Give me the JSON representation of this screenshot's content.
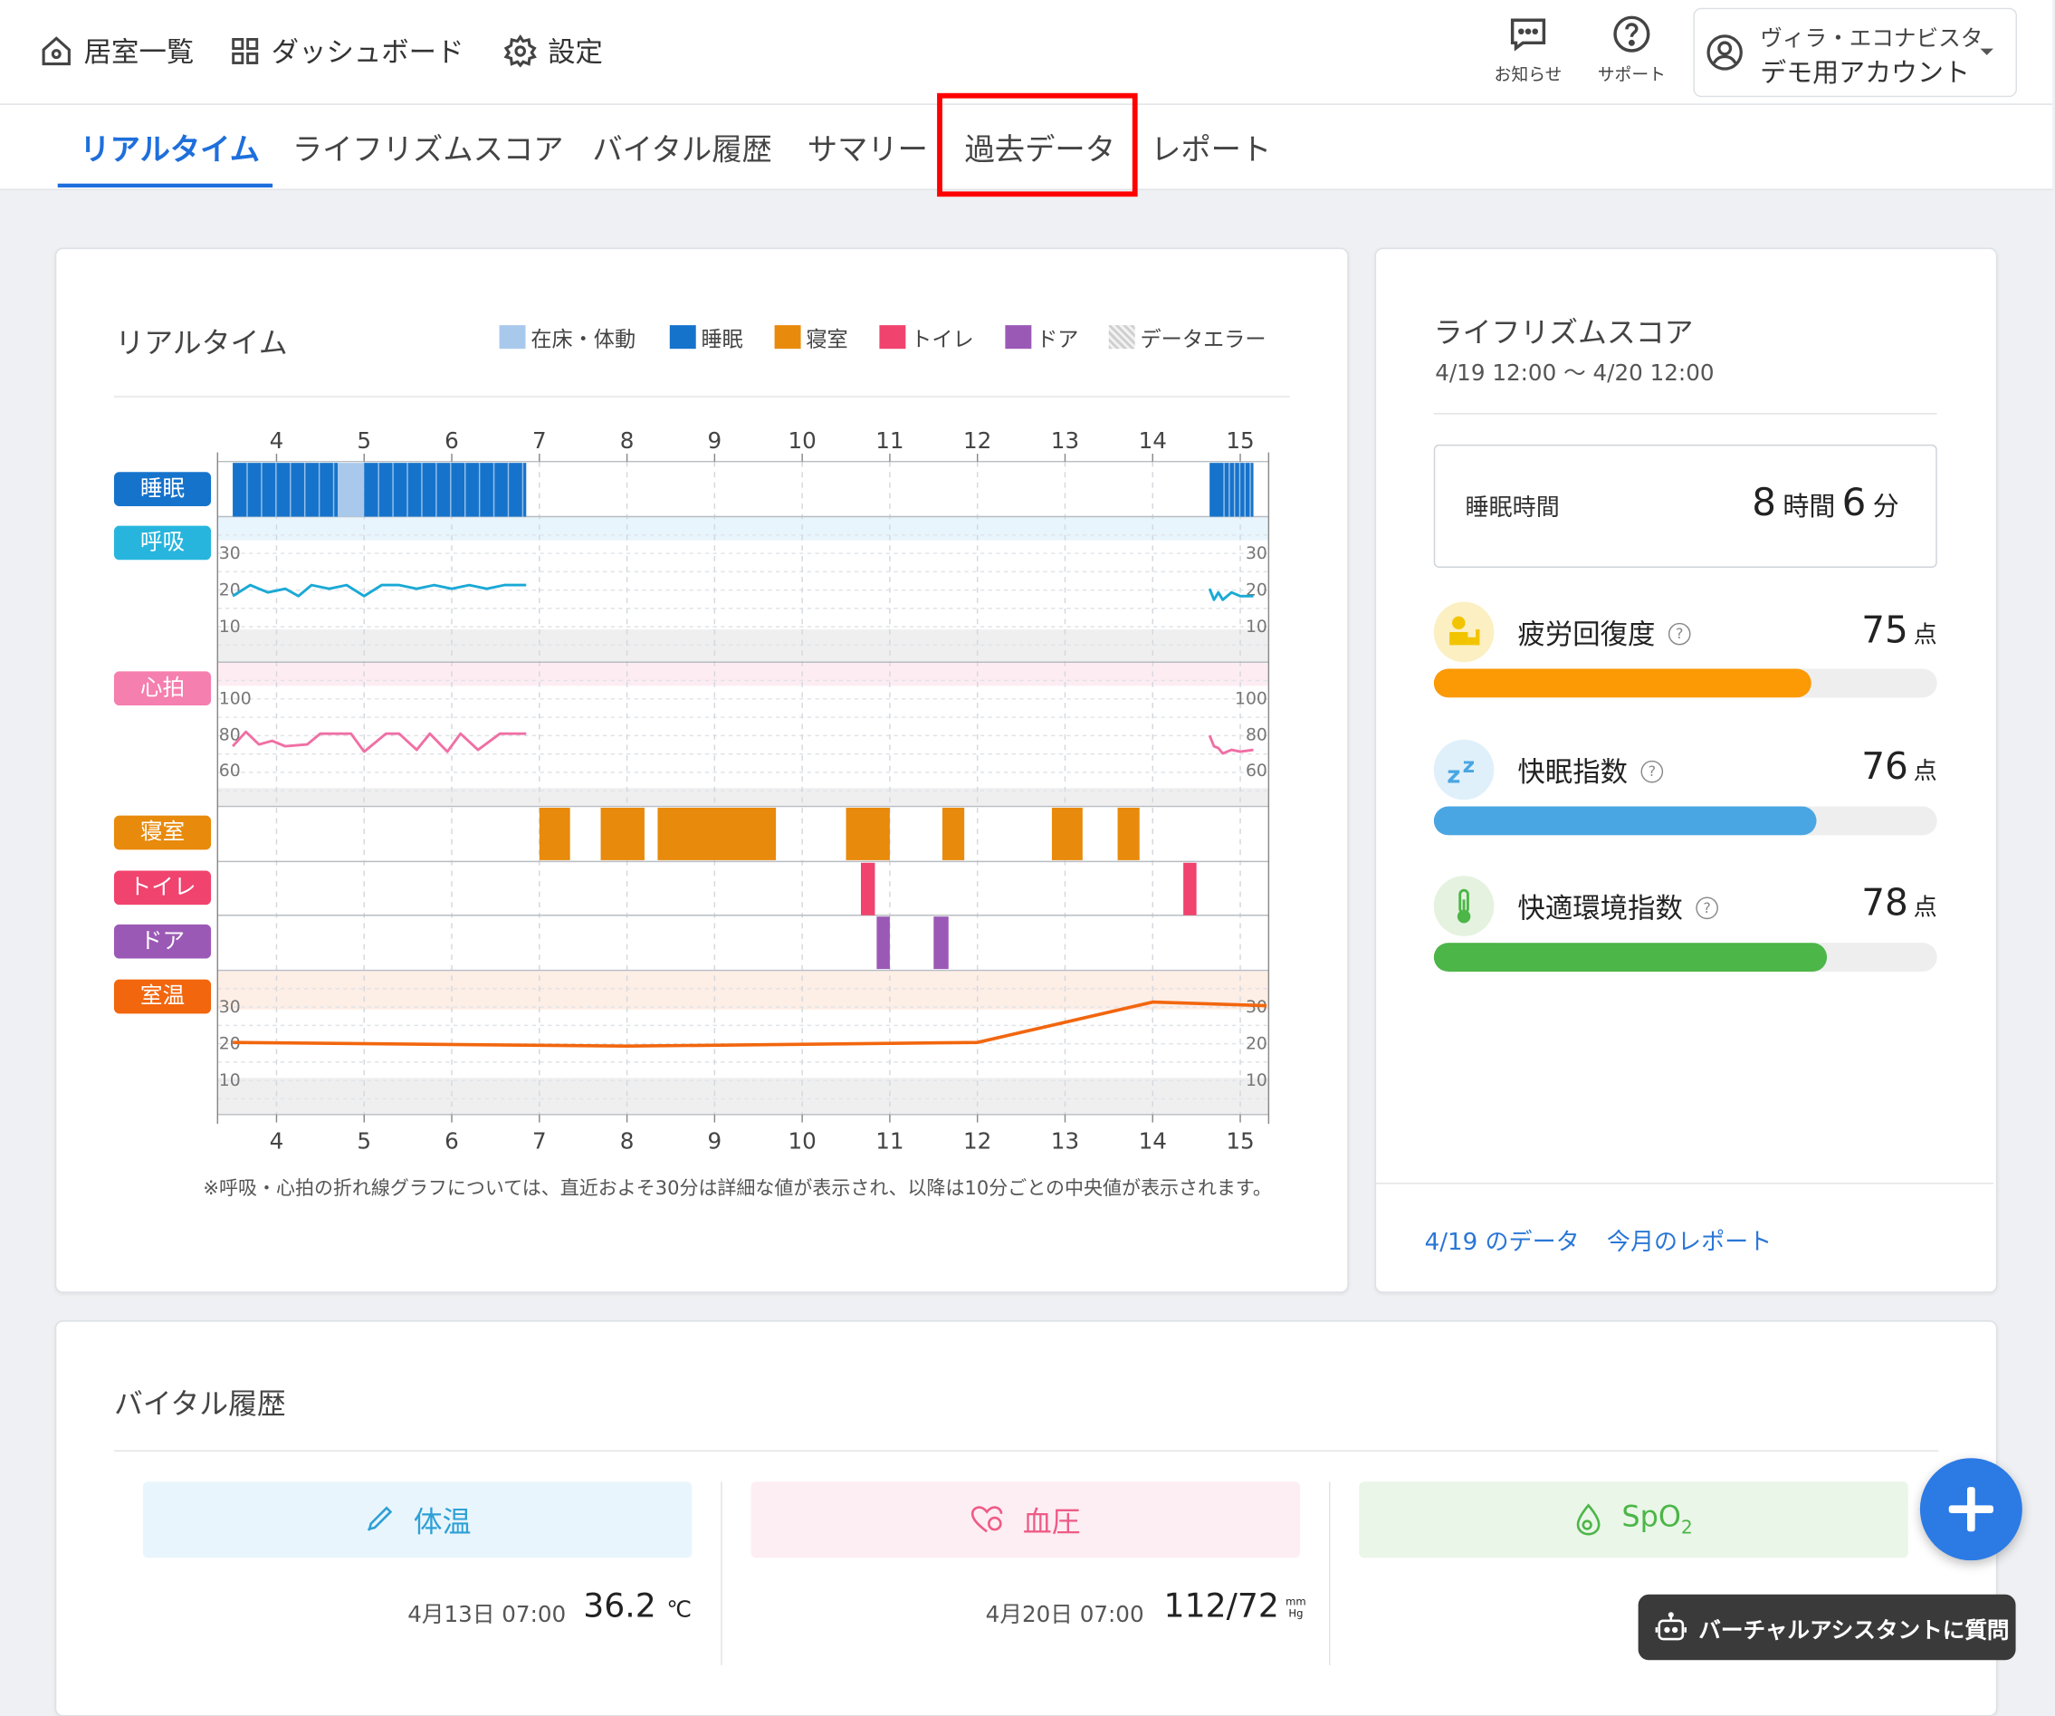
{
  "nav": {
    "rooms": "居室一覧",
    "dashboard": "ダッシュボード",
    "settings": "設定",
    "notifications": "お知らせ",
    "support": "サポート",
    "account_line1": "ヴィラ・エコナビスタ",
    "account_line2": "デモ用アカウント"
  },
  "tabs": [
    "リアルタイム",
    "ライフリズムスコア",
    "バイタル履歴",
    "サマリー",
    "過去データ",
    "レポート"
  ],
  "realtime": {
    "title": "リアルタイム",
    "legend": [
      {
        "label": "在床・体動",
        "color": "#a9c9ec"
      },
      {
        "label": "睡眠",
        "color": "#1673cc"
      },
      {
        "label": "寝室",
        "color": "#e88a0c"
      },
      {
        "label": "トイレ",
        "color": "#f0436e"
      },
      {
        "label": "ドア",
        "color": "#9b59b6"
      },
      {
        "label": "データエラー",
        "color": "#cccccc"
      }
    ],
    "row_labels": {
      "sleep": "睡眠",
      "resp": "呼吸",
      "heart": "心拍",
      "bedroom": "寝室",
      "toilet": "トイレ",
      "door": "ドア",
      "temp": "室温"
    },
    "footnote": "※呼吸・心拍の折れ線グラフについては、直近およそ30分は詳細な値が表示され、以降は10分ごとの中央値が表示されます。"
  },
  "chart_data": {
    "type": "timeline",
    "hour_ticks": [
      "4",
      "5",
      "6",
      "7",
      "8",
      "9",
      "10",
      "11",
      "12",
      "13",
      "14",
      "15"
    ],
    "respiration_ticks": [
      "30",
      "20",
      "10"
    ],
    "heart_ticks": [
      "100",
      "80",
      "60"
    ],
    "temperature_ticks": [
      "30",
      "20",
      "10"
    ],
    "sleep_segments": [
      [
        3.5,
        4.7,
        "sleep"
      ],
      [
        4.7,
        5.0,
        "in_bed"
      ],
      [
        5.0,
        6.85,
        "sleep"
      ],
      [
        14.65,
        15.15,
        "sleep"
      ]
    ],
    "bedroom_segments": [
      [
        7.0,
        7.35
      ],
      [
        7.7,
        8.2
      ],
      [
        8.35,
        9.7
      ],
      [
        10.5,
        11.0
      ],
      [
        11.6,
        11.85
      ],
      [
        12.85,
        13.2
      ],
      [
        13.6,
        13.85
      ]
    ],
    "toilet_segments": [
      [
        10.67,
        10.83
      ],
      [
        14.35,
        14.5
      ]
    ],
    "door_segments": [
      [
        10.85,
        11.0
      ],
      [
        11.5,
        11.67
      ]
    ],
    "respiration": [
      [
        3.5,
        18
      ],
      [
        3.7,
        21
      ],
      [
        3.9,
        19
      ],
      [
        4.1,
        20
      ],
      [
        4.25,
        18
      ],
      [
        4.4,
        21
      ],
      [
        4.6,
        20
      ],
      [
        4.8,
        21
      ],
      [
        5.0,
        18
      ],
      [
        5.2,
        21
      ],
      [
        5.4,
        21
      ],
      [
        5.6,
        20
      ],
      [
        5.8,
        21
      ],
      [
        6.0,
        20
      ],
      [
        6.2,
        21
      ],
      [
        6.4,
        20
      ],
      [
        6.6,
        21
      ],
      [
        6.85,
        21
      ]
    ],
    "respiration_recent": [
      [
        14.65,
        20
      ],
      [
        14.7,
        17
      ],
      [
        14.75,
        19
      ],
      [
        14.8,
        17
      ],
      [
        14.9,
        19
      ],
      [
        15.0,
        18
      ],
      [
        15.15,
        18
      ]
    ],
    "heart_rate": [
      [
        3.5,
        73
      ],
      [
        3.65,
        81
      ],
      [
        3.8,
        74
      ],
      [
        3.95,
        76
      ],
      [
        4.1,
        73
      ],
      [
        4.35,
        74
      ],
      [
        4.5,
        80
      ],
      [
        4.7,
        80
      ],
      [
        4.85,
        80
      ],
      [
        5.0,
        70
      ],
      [
        5.25,
        80
      ],
      [
        5.4,
        80
      ],
      [
        5.6,
        71
      ],
      [
        5.75,
        80
      ],
      [
        5.95,
        70
      ],
      [
        6.1,
        80
      ],
      [
        6.3,
        71
      ],
      [
        6.55,
        80
      ],
      [
        6.85,
        80
      ]
    ],
    "heart_rate_recent": [
      [
        14.65,
        79
      ],
      [
        14.7,
        73
      ],
      [
        14.75,
        72
      ],
      [
        14.8,
        69
      ],
      [
        14.9,
        71
      ],
      [
        15.0,
        70
      ],
      [
        15.15,
        71
      ]
    ],
    "room_temperature": [
      [
        3.5,
        20
      ],
      [
        8.0,
        19
      ],
      [
        12.0,
        20
      ],
      [
        14.0,
        31
      ],
      [
        15.3,
        30
      ]
    ]
  },
  "liferhythm": {
    "title": "ライフリズムスコア",
    "period": "4/19 12:00 ～ 4/20 12:00",
    "sleep_time_label": "睡眠時間",
    "sleep_hours": "8",
    "hours_unit": "時間",
    "sleep_minutes": "6",
    "minutes_unit": "分",
    "points_unit": "点",
    "scores": [
      {
        "name": "疲労回復度",
        "value": "75",
        "fraction": 0.75,
        "color": "#fb9a05"
      },
      {
        "name": "快眠指数",
        "value": "76",
        "fraction": 0.76,
        "color": "#49a6e3"
      },
      {
        "name": "快適環境指数",
        "value": "78",
        "fraction": 0.78,
        "color": "#4cb648"
      }
    ],
    "link_day": "4/19 のデータ",
    "link_month": "今月のレポート"
  },
  "vitals": {
    "title": "バイタル履歴",
    "temp_label": "体温",
    "bp_label": "血圧",
    "spo2_label": "SpO",
    "spo2_sub": "2",
    "temp_date": "4月13日 07:00",
    "temp_value": "36.2",
    "temp_unit": "℃",
    "bp_date": "4月20日 07:00",
    "bp_value": "112/72",
    "bp_unit_top": "mm",
    "bp_unit_bottom": "Hg"
  },
  "assistant": {
    "label": "バーチャルアシスタントに質問"
  }
}
